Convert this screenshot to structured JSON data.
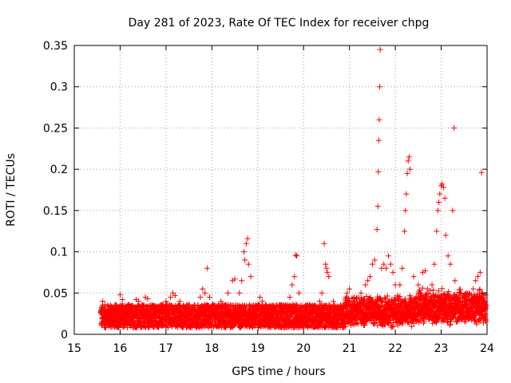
{
  "chart_data": {
    "type": "scatter",
    "title": "Day 281 of 2023, Rate Of TEC Index for receiver chpg",
    "xlabel": "GPS time / hours",
    "ylabel": "ROTI / TECUs",
    "xlim": [
      15,
      24
    ],
    "ylim": [
      0,
      0.35
    ],
    "xticks": [
      "15",
      "16",
      "17",
      "18",
      "19",
      "20",
      "21",
      "22",
      "23",
      "24"
    ],
    "yticks": [
      "0",
      "0.05",
      "0.1",
      "0.15",
      "0.2",
      "0.25",
      "0.3",
      "0.35"
    ],
    "grid": true,
    "marker": "+",
    "marker_color": "#ff0000",
    "series": [
      {
        "name": "ROTI",
        "points": [
          [
            15.62,
            0.04
          ],
          [
            15.65,
            0.03
          ],
          [
            15.7,
            0.025
          ],
          [
            15.8,
            0.03
          ],
          [
            15.9,
            0.035
          ],
          [
            16.0,
            0.048
          ],
          [
            16.05,
            0.042
          ],
          [
            16.1,
            0.035
          ],
          [
            16.2,
            0.03
          ],
          [
            16.35,
            0.042
          ],
          [
            16.4,
            0.04
          ],
          [
            16.55,
            0.045
          ],
          [
            16.6,
            0.043
          ],
          [
            16.75,
            0.03
          ],
          [
            16.9,
            0.035
          ],
          [
            17.0,
            0.04
          ],
          [
            17.1,
            0.045
          ],
          [
            17.15,
            0.05
          ],
          [
            17.2,
            0.047
          ],
          [
            17.3,
            0.04
          ],
          [
            17.45,
            0.035
          ],
          [
            17.6,
            0.03
          ],
          [
            17.75,
            0.045
          ],
          [
            17.8,
            0.055
          ],
          [
            17.85,
            0.05
          ],
          [
            17.9,
            0.08
          ],
          [
            17.95,
            0.045
          ],
          [
            18.05,
            0.035
          ],
          [
            18.2,
            0.04
          ],
          [
            18.35,
            0.05
          ],
          [
            18.45,
            0.065
          ],
          [
            18.5,
            0.067
          ],
          [
            18.6,
            0.05
          ],
          [
            18.65,
            0.065
          ],
          [
            18.7,
            0.1
          ],
          [
            18.72,
            0.09
          ],
          [
            18.75,
            0.11
          ],
          [
            18.78,
            0.116
          ],
          [
            18.8,
            0.085
          ],
          [
            18.85,
            0.07
          ],
          [
            18.95,
            0.035
          ],
          [
            19.05,
            0.045
          ],
          [
            19.1,
            0.04
          ],
          [
            19.25,
            0.03
          ],
          [
            19.4,
            0.035
          ],
          [
            19.55,
            0.035
          ],
          [
            19.7,
            0.045
          ],
          [
            19.75,
            0.06
          ],
          [
            19.8,
            0.07
          ],
          [
            19.83,
            0.096
          ],
          [
            19.85,
            0.095
          ],
          [
            19.9,
            0.05
          ],
          [
            20.05,
            0.035
          ],
          [
            20.2,
            0.035
          ],
          [
            20.35,
            0.04
          ],
          [
            20.4,
            0.05
          ],
          [
            20.45,
            0.11
          ],
          [
            20.48,
            0.085
          ],
          [
            20.5,
            0.08
          ],
          [
            20.52,
            0.075
          ],
          [
            20.55,
            0.07
          ],
          [
            20.65,
            0.04
          ],
          [
            20.8,
            0.035
          ],
          [
            20.95,
            0.05
          ],
          [
            21.0,
            0.055
          ],
          [
            21.1,
            0.045
          ],
          [
            21.25,
            0.05
          ],
          [
            21.35,
            0.06
          ],
          [
            21.4,
            0.065
          ],
          [
            21.45,
            0.07
          ],
          [
            21.5,
            0.085
          ],
          [
            21.55,
            0.09
          ],
          [
            21.6,
            0.127
          ],
          [
            21.62,
            0.155
          ],
          [
            21.63,
            0.197
          ],
          [
            21.64,
            0.235
          ],
          [
            21.65,
            0.26
          ],
          [
            21.66,
            0.3
          ],
          [
            21.67,
            0.345
          ],
          [
            21.7,
            0.08
          ],
          [
            21.75,
            0.085
          ],
          [
            21.8,
            0.08
          ],
          [
            21.85,
            0.095
          ],
          [
            21.9,
            0.085
          ],
          [
            21.95,
            0.075
          ],
          [
            22.0,
            0.06
          ],
          [
            22.1,
            0.06
          ],
          [
            22.15,
            0.08
          ],
          [
            22.2,
            0.125
          ],
          [
            22.22,
            0.15
          ],
          [
            22.24,
            0.17
          ],
          [
            22.26,
            0.195
          ],
          [
            22.28,
            0.21
          ],
          [
            22.3,
            0.215
          ],
          [
            22.32,
            0.2
          ],
          [
            22.4,
            0.07
          ],
          [
            22.5,
            0.06
          ],
          [
            22.6,
            0.075
          ],
          [
            22.65,
            0.077
          ],
          [
            22.7,
            0.055
          ],
          [
            22.8,
            0.06
          ],
          [
            22.85,
            0.085
          ],
          [
            22.9,
            0.125
          ],
          [
            22.93,
            0.15
          ],
          [
            22.95,
            0.16
          ],
          [
            22.97,
            0.17
          ],
          [
            23.0,
            0.18
          ],
          [
            23.02,
            0.182
          ],
          [
            23.05,
            0.178
          ],
          [
            23.08,
            0.165
          ],
          [
            23.1,
            0.12
          ],
          [
            23.15,
            0.095
          ],
          [
            23.2,
            0.085
          ],
          [
            23.25,
            0.15
          ],
          [
            23.28,
            0.25
          ],
          [
            23.3,
            0.065
          ],
          [
            23.4,
            0.05
          ],
          [
            23.55,
            0.05
          ],
          [
            23.7,
            0.055
          ],
          [
            23.75,
            0.065
          ],
          [
            23.8,
            0.07
          ],
          [
            23.85,
            0.075
          ],
          [
            23.88,
            0.196
          ],
          [
            23.9,
            0.05
          ],
          [
            23.95,
            0.04
          ],
          [
            23.98,
            0.035
          ]
        ]
      }
    ]
  }
}
